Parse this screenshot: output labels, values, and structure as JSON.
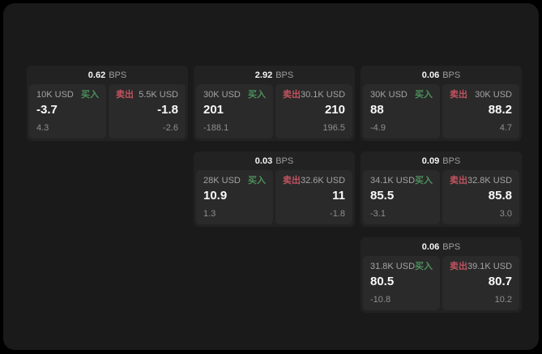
{
  "labels": {
    "buy": "买入",
    "sell": "卖出",
    "bps_unit": "BPS"
  },
  "colors": {
    "buy_green": "#4c8f5c",
    "sell_red": "#c0535f",
    "panel_bg": "#1a1a1a",
    "card_bg": "#222222",
    "tile_bg": "#2a2a2a"
  },
  "cards": [
    {
      "row": 1,
      "col": 1,
      "bps": "0.62",
      "buy": {
        "amount": "10K USD",
        "price": "-3.7",
        "delta": "4.3"
      },
      "sell": {
        "amount": "5.5K USD",
        "price": "-1.8",
        "delta": "-2.6"
      }
    },
    {
      "row": 1,
      "col": 2,
      "bps": "2.92",
      "buy": {
        "amount": "30K USD",
        "price": "201",
        "delta": "-188.1"
      },
      "sell": {
        "amount": "30.1K USD",
        "price": "210",
        "delta": "196.5"
      }
    },
    {
      "row": 1,
      "col": 3,
      "bps": "0.06",
      "buy": {
        "amount": "30K USD",
        "price": "88",
        "delta": "-4.9"
      },
      "sell": {
        "amount": "30K USD",
        "price": "88.2",
        "delta": "4.7"
      }
    },
    {
      "row": 2,
      "col": 2,
      "bps": "0.03",
      "buy": {
        "amount": "28K USD",
        "price": "10.9",
        "delta": "1.3"
      },
      "sell": {
        "amount": "32.6K USD",
        "price": "11",
        "delta": "-1.8"
      }
    },
    {
      "row": 2,
      "col": 3,
      "bps": "0.09",
      "buy": {
        "amount": "34.1K USD",
        "price": "85.5",
        "delta": "-3.1"
      },
      "sell": {
        "amount": "32.8K USD",
        "price": "85.8",
        "delta": "3.0"
      }
    },
    {
      "row": 3,
      "col": 3,
      "bps": "0.06",
      "buy": {
        "amount": "31.8K USD",
        "price": "80.5",
        "delta": "-10.8"
      },
      "sell": {
        "amount": "39.1K USD",
        "price": "80.7",
        "delta": "10.2"
      }
    }
  ]
}
